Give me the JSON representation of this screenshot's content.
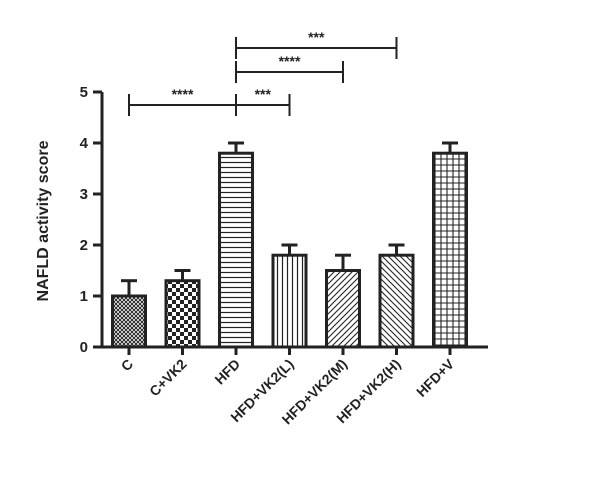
{
  "chart_data": {
    "type": "bar",
    "title": "",
    "xlabel": "",
    "ylabel": "NAFLD activity score",
    "ylim": [
      0,
      5
    ],
    "yticks": [
      0,
      1,
      2,
      3,
      4,
      5
    ],
    "grid": false,
    "categories": [
      "C",
      "C+VK2",
      "HFD",
      "HFD+VK2(L)",
      "HFD+VK2(M)",
      "HFD+VK2(H)",
      "HFD+V"
    ],
    "values": [
      1.0,
      1.3,
      3.8,
      1.8,
      1.5,
      1.8,
      3.8
    ],
    "errors": [
      0.3,
      0.2,
      0.2,
      0.2,
      0.3,
      0.2,
      0.2
    ],
    "patterns": [
      "cross-fine",
      "checker",
      "horizontal",
      "vertical",
      "diagonal-up",
      "diagonal-down",
      "grid"
    ],
    "significance": [
      {
        "from": "C",
        "to": "HFD",
        "label": "****"
      },
      {
        "from": "HFD",
        "to": "HFD+VK2(L)",
        "label": "***"
      },
      {
        "from": "HFD",
        "to": "HFD+VK2(M)",
        "label": "****"
      },
      {
        "from": "HFD",
        "to": "HFD+VK2(H)",
        "label": "***"
      }
    ]
  }
}
